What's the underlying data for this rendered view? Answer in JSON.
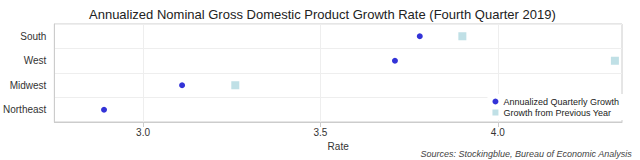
{
  "chart_data": {
    "type": "scatter",
    "title": "Annualized Nominal Gross Domestic Product Growth Rate (Fourth Quarter 2019)",
    "orientation": "horizontal",
    "categories": [
      "South",
      "West",
      "Midwest",
      "Northeast"
    ],
    "series": [
      {
        "name": "Annualized Quarterly Growth",
        "color": "#0000cd",
        "marker": "circle",
        "values": [
          3.78,
          3.71,
          3.11,
          2.89
        ]
      },
      {
        "name": "Growth from Previous Year",
        "color": "#b0d8e0",
        "marker": "square",
        "values": [
          3.9,
          4.33,
          3.26,
          null
        ]
      }
    ],
    "xlabel": "Rate",
    "xlim": [
      2.75,
      4.35
    ],
    "xticks": [
      {
        "value": 3,
        "label": "3.0"
      },
      3.5,
      {
        "value": 4,
        "label": "4.0"
      }
    ],
    "grid": true,
    "legend": "lower right",
    "source": "Sources: Stockingblue, Bureau of Economic Analysis"
  }
}
